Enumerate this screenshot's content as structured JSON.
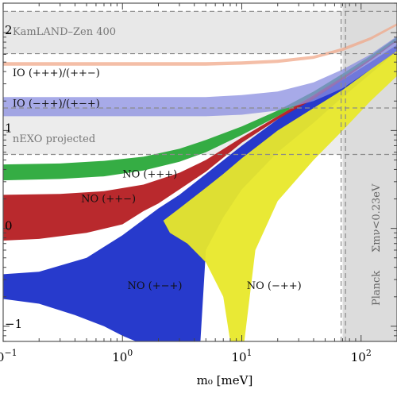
{
  "chart_data": {
    "type": "area",
    "xlabel": "m₀ [meV]",
    "xscale": "log",
    "yscale": "log",
    "xlim": [
      0.1,
      200
    ],
    "ylim": [
      0.07,
      200
    ],
    "x_ticks": [
      {
        "value": 0.1,
        "mantissa": "10",
        "exp": "−1"
      },
      {
        "value": 1,
        "mantissa": "10",
        "exp": "0"
      },
      {
        "value": 10,
        "mantissa": "10",
        "exp": "1"
      },
      {
        "value": 100,
        "mantissa": "10",
        "exp": "2"
      }
    ],
    "y_ticks": [
      {
        "value": 0.1,
        "mantissa": "",
        "exp": "−1"
      },
      {
        "value": 1,
        "mantissa": "",
        "exp": "0"
      },
      {
        "value": 10,
        "mantissa": "",
        "exp": "1"
      },
      {
        "value": 100,
        "mantissa": "",
        "exp": "2"
      }
    ],
    "regions": [
      {
        "name": "KamLAND–Zen 400",
        "type": "hband",
        "y": [
          61,
          165
        ],
        "color": "#e8e8e8",
        "dashed_lines": [
          61,
          165
        ]
      },
      {
        "name": "nEXO projected",
        "type": "hband",
        "y": [
          5.7,
          17
        ],
        "color": "#ececec",
        "dashed_lines": [
          5.7,
          17
        ]
      },
      {
        "name": "Planck  Σmν<0.23eV",
        "type": "vband",
        "x": [
          70,
          200
        ],
        "color": "#dcdcdc",
        "dashed_lines": [
          68,
          74
        ]
      }
    ],
    "series": [
      {
        "name": "NO (+−+)",
        "color": "#1b2fc9",
        "upper": [
          [
            0.1,
            0.34
          ],
          [
            0.2,
            0.36
          ],
          [
            0.5,
            0.5
          ],
          [
            1.0,
            0.85
          ],
          [
            2.0,
            1.6
          ],
          [
            3.0,
            2.2
          ],
          [
            5.0,
            3.6
          ],
          [
            10,
            7.0
          ],
          [
            20,
            13
          ],
          [
            40,
            22
          ],
          [
            70,
            33
          ],
          [
            120,
            50
          ],
          [
            200,
            75
          ]
        ],
        "lower": [
          [
            0.1,
            0.19
          ],
          [
            0.2,
            0.17
          ],
          [
            0.4,
            0.13
          ],
          [
            0.7,
            0.1
          ],
          [
            1.0,
            0.08
          ],
          [
            1.3,
            0.07
          ],
          [
            4.5,
            0.07
          ],
          [
            5.0,
            0.6
          ],
          [
            7.0,
            1.3
          ],
          [
            10,
            2.5
          ],
          [
            20,
            6.0
          ],
          [
            40,
            12
          ],
          [
            70,
            22
          ],
          [
            120,
            38
          ],
          [
            200,
            65
          ]
        ]
      },
      {
        "name": "NO (−++)",
        "color": "#e8e82a",
        "upper": [
          [
            2.2,
            1.2
          ],
          [
            3.0,
            1.6
          ],
          [
            5.0,
            2.6
          ],
          [
            7.0,
            3.6
          ],
          [
            10,
            5.2
          ],
          [
            20,
            10
          ],
          [
            40,
            17
          ],
          [
            70,
            26
          ],
          [
            120,
            42
          ],
          [
            200,
            65
          ]
        ],
        "lower": [
          [
            2.5,
            0.9
          ],
          [
            3.5,
            0.7
          ],
          [
            5.0,
            0.45
          ],
          [
            7.0,
            0.2
          ],
          [
            8.0,
            0.07
          ],
          [
            10.5,
            0.07
          ],
          [
            13,
            0.6
          ],
          [
            20,
            1.9
          ],
          [
            40,
            5
          ],
          [
            70,
            10
          ],
          [
            120,
            20
          ],
          [
            200,
            36
          ]
        ]
      },
      {
        "name": "NO (++−)",
        "color": "#b51e22",
        "upper": [
          [
            0.1,
            2.2
          ],
          [
            0.3,
            2.25
          ],
          [
            0.7,
            2.4
          ],
          [
            1.5,
            2.8
          ],
          [
            3.0,
            3.7
          ],
          [
            5.0,
            5.0
          ],
          [
            10,
            8.5
          ],
          [
            20,
            14
          ],
          [
            40,
            23
          ],
          [
            70,
            36
          ],
          [
            120,
            55
          ],
          [
            200,
            85
          ]
        ],
        "lower": [
          [
            0.1,
            0.75
          ],
          [
            0.2,
            0.78
          ],
          [
            0.5,
            0.9
          ],
          [
            1.0,
            1.1
          ],
          [
            1.5,
            1.5
          ],
          [
            2.0,
            1.8
          ],
          [
            3.0,
            2.5
          ],
          [
            5.0,
            3.8
          ],
          [
            10,
            7.5
          ],
          [
            20,
            13
          ],
          [
            40,
            21
          ],
          [
            70,
            33
          ],
          [
            120,
            52
          ],
          [
            200,
            82
          ]
        ]
      },
      {
        "name": "NO (+++)",
        "color": "#2aa93a",
        "upper": [
          [
            0.1,
            4.5
          ],
          [
            0.3,
            4.6
          ],
          [
            0.7,
            4.9
          ],
          [
            1.5,
            5.4
          ],
          [
            3.0,
            6.5
          ],
          [
            5.0,
            8.0
          ],
          [
            10,
            11
          ],
          [
            20,
            16
          ],
          [
            40,
            25
          ],
          [
            70,
            38
          ],
          [
            120,
            58
          ],
          [
            200,
            90
          ]
        ],
        "lower": [
          [
            0.1,
            3.1
          ],
          [
            0.3,
            3.2
          ],
          [
            0.7,
            3.4
          ],
          [
            1.5,
            3.9
          ],
          [
            3.0,
            4.8
          ],
          [
            5.0,
            6.0
          ],
          [
            10,
            9.0
          ],
          [
            20,
            14
          ],
          [
            40,
            23
          ],
          [
            70,
            35
          ],
          [
            120,
            54
          ],
          [
            200,
            84
          ]
        ]
      },
      {
        "name": "IO (−++)/(+−+)",
        "color": "#8a8ee0",
        "upper": [
          [
            0.1,
            22
          ],
          [
            1,
            22
          ],
          [
            5,
            22
          ],
          [
            10,
            23
          ],
          [
            20,
            25
          ],
          [
            40,
            31
          ],
          [
            70,
            42
          ],
          [
            120,
            60
          ],
          [
            200,
            92
          ]
        ],
        "lower": [
          [
            0.1,
            14
          ],
          [
            1,
            14
          ],
          [
            5,
            14
          ],
          [
            10,
            14.5
          ],
          [
            20,
            16
          ],
          [
            40,
            20
          ],
          [
            70,
            27
          ],
          [
            120,
            42
          ],
          [
            200,
            65
          ]
        ]
      },
      {
        "name": "IO (+++)/(++−)",
        "color": "#f0a88a",
        "upper": [
          [
            0.1,
            50
          ],
          [
            1,
            50
          ],
          [
            5,
            50
          ],
          [
            10,
            51
          ],
          [
            20,
            53
          ],
          [
            40,
            58
          ],
          [
            70,
            70
          ],
          [
            120,
            90
          ],
          [
            200,
            125
          ]
        ],
        "lower": [
          [
            0.1,
            46
          ],
          [
            1,
            46
          ],
          [
            5,
            46
          ],
          [
            10,
            47
          ],
          [
            20,
            49
          ],
          [
            40,
            54
          ],
          [
            70,
            65
          ],
          [
            120,
            84
          ],
          [
            200,
            118
          ]
        ]
      }
    ],
    "band_labels": {
      "no_pmp": "NO (+−+)",
      "no_mpp": "NO (−++)",
      "no_ppm": "NO (++−)",
      "no_ppp": "NO (+++)",
      "io_mpp": "IO (−++)/(+−+)",
      "io_ppp": "IO (+++)/(++−)",
      "kamland": "KamLAND–Zen 400",
      "nexo": "nEXO projected",
      "planck_a": "Planck",
      "planck_b": "Σmν<0.23eV"
    }
  },
  "colors": {
    "frame": "#555555",
    "dash": "#8a8a8a"
  }
}
